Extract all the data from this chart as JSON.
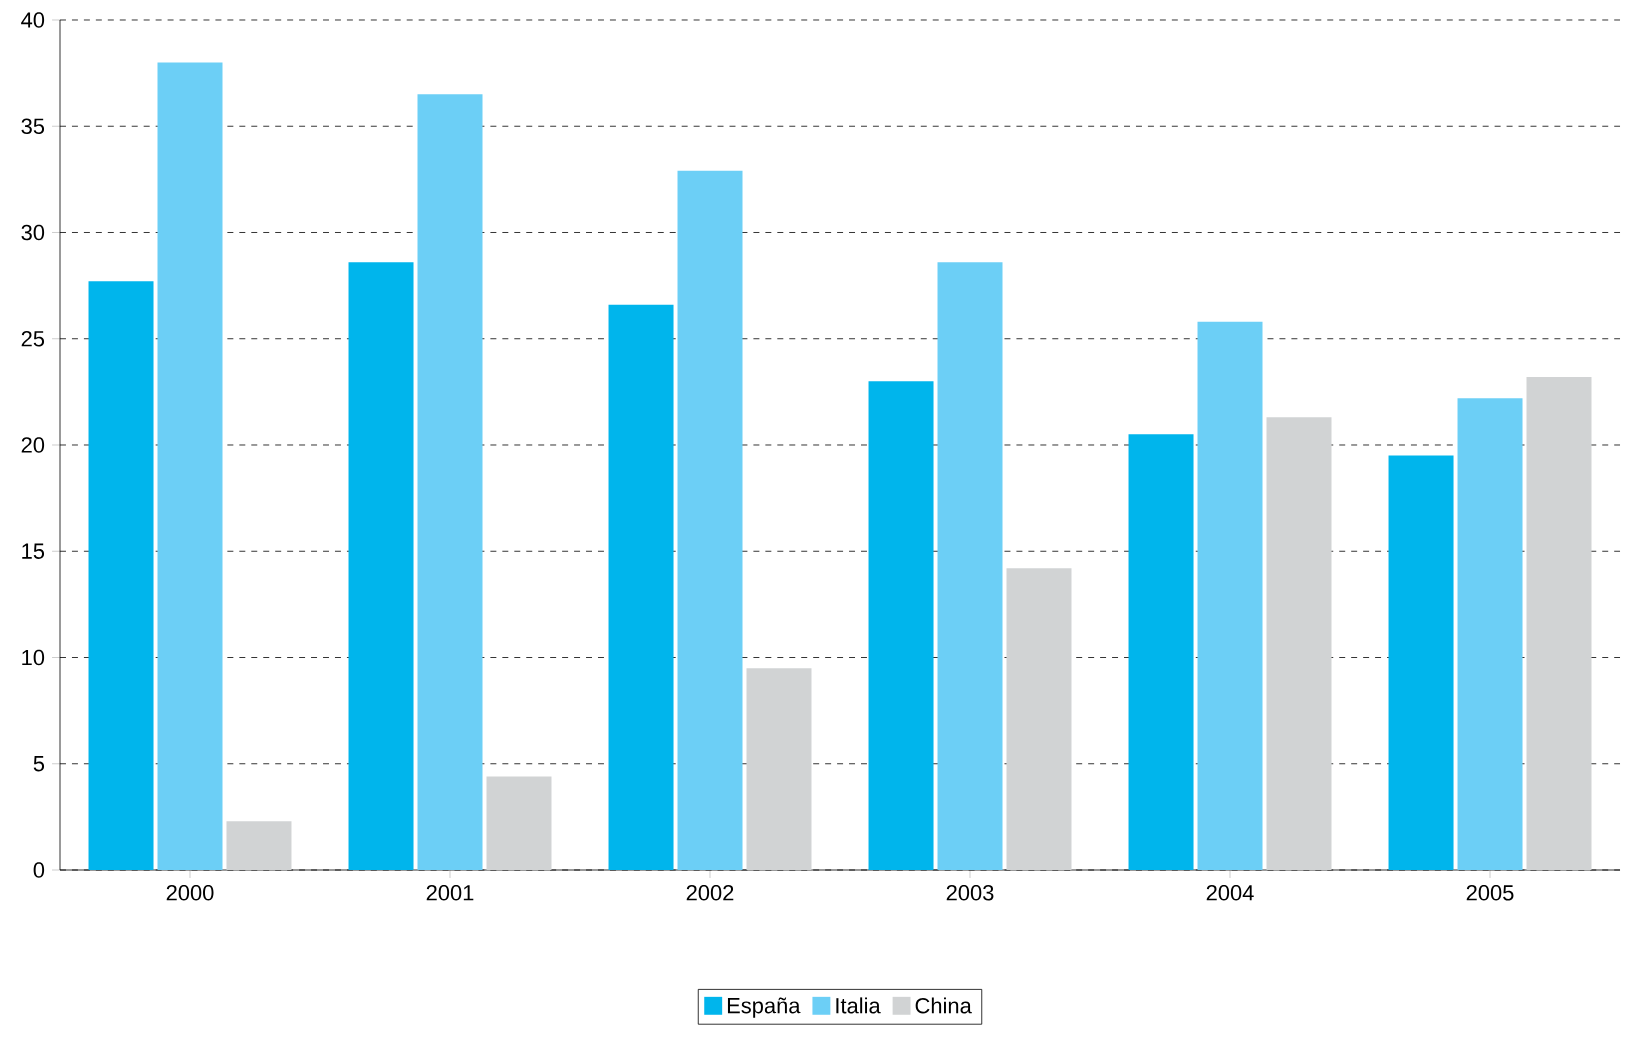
{
  "chart_data": {
    "type": "bar",
    "categories": [
      "2000",
      "2001",
      "2002",
      "2003",
      "2004",
      "2005"
    ],
    "series": [
      {
        "name": "España",
        "color": "#00b5ec",
        "values": [
          27.7,
          28.6,
          26.6,
          23,
          20.5,
          19.5
        ]
      },
      {
        "name": "Italia",
        "color": "#6ccff6",
        "values": [
          38,
          36.5,
          32.9,
          28.6,
          25.8,
          22.2
        ]
      },
      {
        "name": "China",
        "color": "#d1d3d4",
        "values": [
          2.3,
          4.4,
          9.5,
          14.2,
          21.3,
          23.2
        ]
      }
    ],
    "ylim": [
      0,
      40
    ],
    "yticks": [
      0,
      5,
      10,
      15,
      20,
      25,
      30,
      35,
      40
    ],
    "grid": "y",
    "legend": "bottom"
  }
}
